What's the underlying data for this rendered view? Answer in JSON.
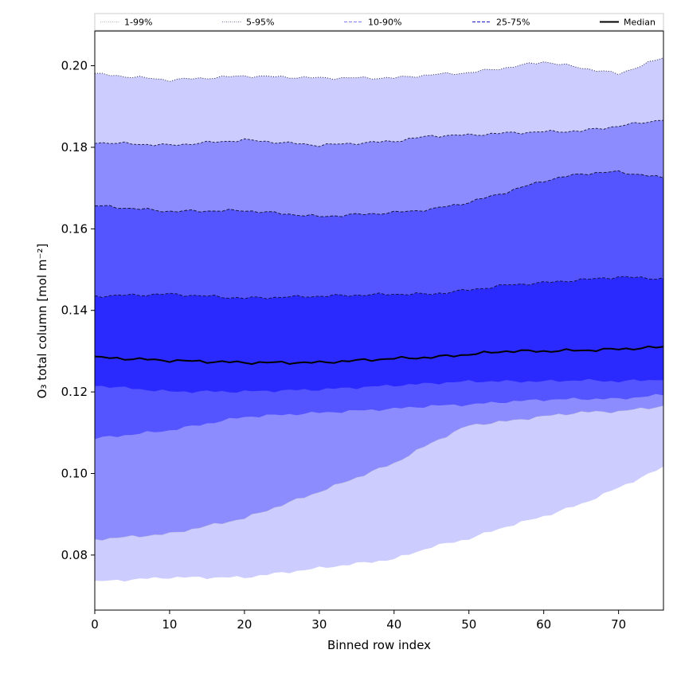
{
  "chart_data": {
    "type": "area",
    "title": "",
    "xlabel": "Binned row index",
    "ylabel": "O₃ total column [mol m⁻²]",
    "xlim": [
      0,
      76
    ],
    "ylim": [
      0.0665,
      0.2085
    ],
    "xticks": [
      0,
      10,
      20,
      30,
      40,
      50,
      60,
      70
    ],
    "yticks": [
      0.08,
      0.1,
      0.12,
      0.14,
      0.16,
      0.18,
      0.2
    ],
    "ytick_labels": [
      "0.08",
      "0.10",
      "0.12",
      "0.14",
      "0.16",
      "0.18",
      "0.20"
    ],
    "legend": {
      "placement": "top",
      "entries": [
        {
          "label": "1-99%",
          "style": "dotted",
          "color": "#bbbbbb"
        },
        {
          "label": "5-95%",
          "style": "dotted",
          "color": "#8888aa"
        },
        {
          "label": "10-90%",
          "style": "dashed",
          "color": "#8c8cff"
        },
        {
          "label": "25-75%",
          "style": "dashed",
          "color": "#3333cc"
        },
        {
          "label": "Median",
          "style": "solid",
          "color": "#000000"
        }
      ]
    },
    "x_key": [
      0,
      10,
      20,
      30,
      40,
      45,
      50,
      55,
      60,
      65,
      70,
      76
    ],
    "series": [
      {
        "name": "p1",
        "values": [
          0.0735,
          0.0745,
          0.0745,
          0.0768,
          0.079,
          0.082,
          0.084,
          0.087,
          0.0895,
          0.0925,
          0.0965,
          0.1015
        ]
      },
      {
        "name": "p5",
        "values": [
          0.0838,
          0.0852,
          0.089,
          0.0955,
          0.1025,
          0.1075,
          0.1118,
          0.1128,
          0.114,
          0.115,
          0.1152,
          0.1165
        ]
      },
      {
        "name": "p10",
        "values": [
          0.1085,
          0.1105,
          0.1138,
          0.1148,
          0.1158,
          0.1165,
          0.1168,
          0.1175,
          0.118,
          0.1182,
          0.1182,
          0.1192
        ]
      },
      {
        "name": "p25",
        "values": [
          0.1215,
          0.12,
          0.12,
          0.1205,
          0.1215,
          0.122,
          0.1225,
          0.1225,
          0.1225,
          0.1228,
          0.1225,
          0.123
        ]
      },
      {
        "name": "Median",
        "values": [
          0.1285,
          0.1277,
          0.1272,
          0.1272,
          0.1282,
          0.1285,
          0.1292,
          0.13,
          0.13,
          0.1302,
          0.1305,
          0.131
        ]
      },
      {
        "name": "p75",
        "values": [
          0.1435,
          0.144,
          0.143,
          0.1435,
          0.144,
          0.144,
          0.145,
          0.1462,
          0.1468,
          0.1475,
          0.1482,
          0.1478
        ]
      },
      {
        "name": "p90",
        "values": [
          0.1657,
          0.1643,
          0.1645,
          0.163,
          0.164,
          0.1648,
          0.1665,
          0.169,
          0.1718,
          0.1735,
          0.174,
          0.1725
        ]
      },
      {
        "name": "p95",
        "values": [
          0.1812,
          0.1805,
          0.1818,
          0.1805,
          0.1815,
          0.1828,
          0.183,
          0.1835,
          0.1838,
          0.184,
          0.1852,
          0.1868
        ]
      },
      {
        "name": "p99",
        "values": [
          0.198,
          0.1965,
          0.1975,
          0.197,
          0.197,
          0.1978,
          0.1983,
          0.1995,
          0.201,
          0.1995,
          0.198,
          0.202
        ]
      }
    ],
    "bands": [
      {
        "lower": "p1",
        "upper": "p5",
        "fill": "#ccccff",
        "edge": "#bbbbbb",
        "dash": "1,2"
      },
      {
        "lower": "p95",
        "upper": "p99",
        "fill": "#ccccff",
        "edge": "#1a1a3a",
        "dash": "1,2"
      },
      {
        "lower": "p5",
        "upper": "p10",
        "fill": "#8c8cff",
        "edge": "#8c8cff",
        "dash": ""
      },
      {
        "lower": "p90",
        "upper": "p95",
        "fill": "#8c8cff",
        "edge": "#1a1a3a",
        "dash": "3,2"
      },
      {
        "lower": "p10",
        "upper": "p25",
        "fill": "#5555ff",
        "edge": "#5555ff",
        "dash": ""
      },
      {
        "lower": "p75",
        "upper": "p90",
        "fill": "#5555ff",
        "edge": "#111133",
        "dash": "4,2"
      },
      {
        "lower": "p25",
        "upper": "p75",
        "fill": "#2a2aff",
        "edge": "#111144",
        "dash": "4,2"
      }
    ]
  }
}
